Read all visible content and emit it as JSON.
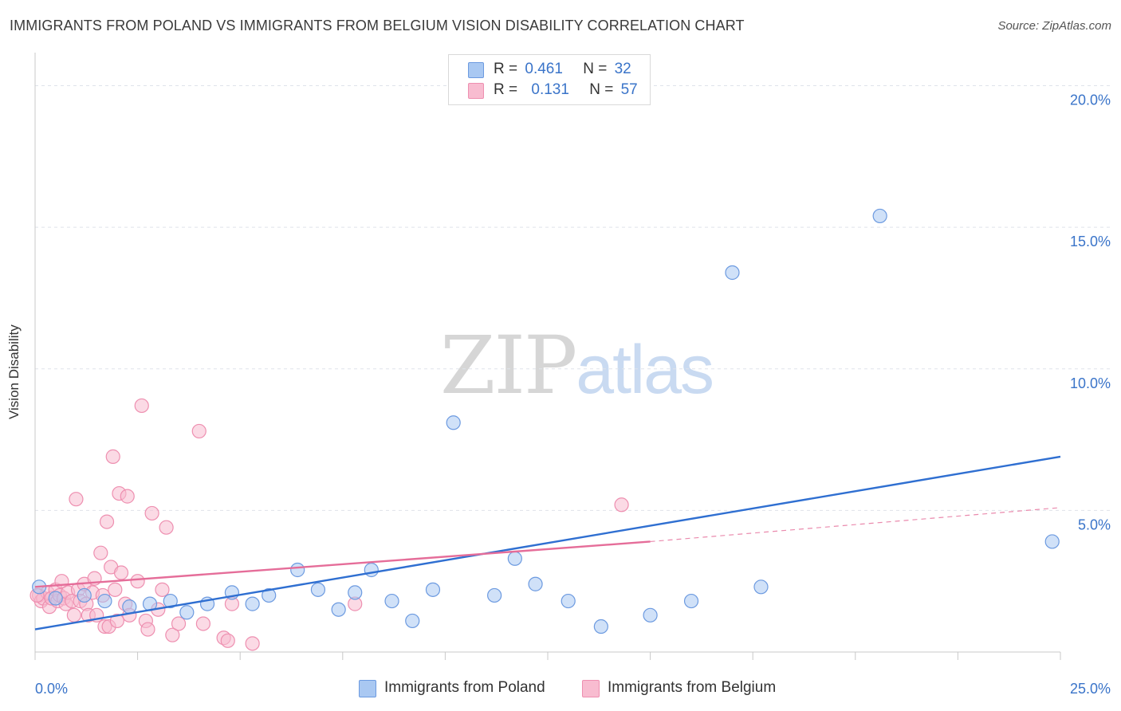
{
  "title": "IMMIGRANTS FROM POLAND VS IMMIGRANTS FROM BELGIUM VISION DISABILITY CORRELATION CHART",
  "source": "Source: ZipAtlas.com",
  "watermark": {
    "part1": "ZIP",
    "part2": "atlas"
  },
  "legend": {
    "rows": [
      {
        "r_label": "R =",
        "r_value": "0.461",
        "n_label": "N =",
        "n_value": "32",
        "color": "#a9c8f2"
      },
      {
        "r_label": "R =",
        "r_value": "0.131",
        "n_label": "N =",
        "n_value": "57",
        "color": "#f8bcd0"
      }
    ]
  },
  "colors": {
    "poland_fill": "#a9c8f2",
    "poland_stroke": "#6c9ae0",
    "poland_line": "#2f6fd1",
    "belgium_fill": "#f8bcd0",
    "belgium_stroke": "#ee8fb0",
    "belgium_line": "#e56d99",
    "axis_label": "#3a74c9",
    "grid": "#dfe3ea"
  },
  "chart_data": {
    "type": "scatter",
    "title": "IMMIGRANTS FROM POLAND VS IMMIGRANTS FROM BELGIUM VISION DISABILITY CORRELATION CHART",
    "xlabel": "",
    "ylabel": "Vision Disability",
    "xlim": [
      0,
      25
    ],
    "ylim": [
      0,
      21
    ],
    "x_tick_labels": [
      "0.0%",
      "25.0%"
    ],
    "y_ticks": [
      5,
      10,
      15,
      20
    ],
    "y_tick_labels": [
      "5.0%",
      "10.0%",
      "15.0%",
      "20.0%"
    ],
    "grid": true,
    "series": [
      {
        "name": "Immigrants from Poland",
        "r": 0.461,
        "n": 32,
        "trend": {
          "x": [
            0,
            25
          ],
          "y": [
            0.8,
            6.9
          ]
        },
        "points": [
          [
            0.1,
            2.3
          ],
          [
            1.2,
            2.0
          ],
          [
            1.7,
            1.8
          ],
          [
            2.3,
            1.6
          ],
          [
            2.8,
            1.7
          ],
          [
            3.3,
            1.8
          ],
          [
            3.7,
            1.4
          ],
          [
            4.2,
            1.7
          ],
          [
            4.8,
            2.1
          ],
          [
            5.3,
            1.7
          ],
          [
            5.7,
            2.0
          ],
          [
            6.4,
            2.9
          ],
          [
            6.9,
            2.2
          ],
          [
            7.4,
            1.5
          ],
          [
            7.8,
            2.1
          ],
          [
            8.2,
            2.9
          ],
          [
            8.7,
            1.8
          ],
          [
            9.2,
            1.1
          ],
          [
            9.7,
            2.2
          ],
          [
            10.2,
            8.1
          ],
          [
            11.2,
            2.0
          ],
          [
            11.7,
            3.3
          ],
          [
            12.2,
            2.4
          ],
          [
            13.0,
            1.8
          ],
          [
            13.8,
            0.9
          ],
          [
            15.0,
            1.3
          ],
          [
            16.0,
            1.8
          ],
          [
            17.0,
            13.4
          ],
          [
            17.7,
            2.3
          ],
          [
            20.6,
            15.4
          ],
          [
            24.8,
            3.9
          ],
          [
            0.5,
            1.9
          ]
        ]
      },
      {
        "name": "Immigrants from Belgium",
        "r": 0.131,
        "n": 57,
        "trend": {
          "x": [
            0,
            15
          ],
          "y": [
            2.3,
            3.9
          ]
        },
        "trend_dashed": {
          "x": [
            15,
            25
          ],
          "y": [
            3.9,
            5.1
          ]
        },
        "points": [
          [
            0.1,
            2.0
          ],
          [
            0.15,
            1.8
          ],
          [
            0.2,
            1.9
          ],
          [
            0.3,
            2.1
          ],
          [
            0.35,
            1.6
          ],
          [
            0.4,
            1.9
          ],
          [
            0.5,
            2.2
          ],
          [
            0.55,
            1.8
          ],
          [
            0.6,
            2.0
          ],
          [
            0.65,
            2.5
          ],
          [
            0.7,
            1.9
          ],
          [
            0.75,
            1.7
          ],
          [
            0.8,
            2.1
          ],
          [
            0.9,
            1.8
          ],
          [
            0.95,
            1.3
          ],
          [
            1.0,
            5.4
          ],
          [
            1.05,
            2.2
          ],
          [
            1.1,
            1.8
          ],
          [
            1.2,
            2.4
          ],
          [
            1.25,
            1.7
          ],
          [
            1.3,
            1.3
          ],
          [
            1.4,
            2.1
          ],
          [
            1.45,
            2.6
          ],
          [
            1.5,
            1.3
          ],
          [
            1.6,
            3.5
          ],
          [
            1.65,
            2.0
          ],
          [
            1.7,
            0.9
          ],
          [
            1.75,
            4.6
          ],
          [
            1.8,
            0.9
          ],
          [
            1.85,
            3.0
          ],
          [
            1.9,
            6.9
          ],
          [
            1.95,
            2.2
          ],
          [
            2.0,
            1.1
          ],
          [
            2.05,
            5.6
          ],
          [
            2.1,
            2.8
          ],
          [
            2.2,
            1.7
          ],
          [
            2.25,
            5.5
          ],
          [
            2.3,
            1.3
          ],
          [
            2.5,
            2.5
          ],
          [
            2.6,
            8.7
          ],
          [
            2.7,
            1.1
          ],
          [
            2.75,
            0.8
          ],
          [
            2.85,
            4.9
          ],
          [
            3.0,
            1.5
          ],
          [
            3.1,
            2.2
          ],
          [
            3.2,
            4.4
          ],
          [
            3.35,
            0.6
          ],
          [
            3.5,
            1.0
          ],
          [
            4.0,
            7.8
          ],
          [
            4.1,
            1.0
          ],
          [
            4.6,
            0.5
          ],
          [
            4.7,
            0.4
          ],
          [
            4.8,
            1.7
          ],
          [
            5.3,
            0.3
          ],
          [
            7.8,
            1.7
          ],
          [
            14.3,
            5.2
          ],
          [
            0.05,
            2.0
          ]
        ]
      }
    ]
  }
}
